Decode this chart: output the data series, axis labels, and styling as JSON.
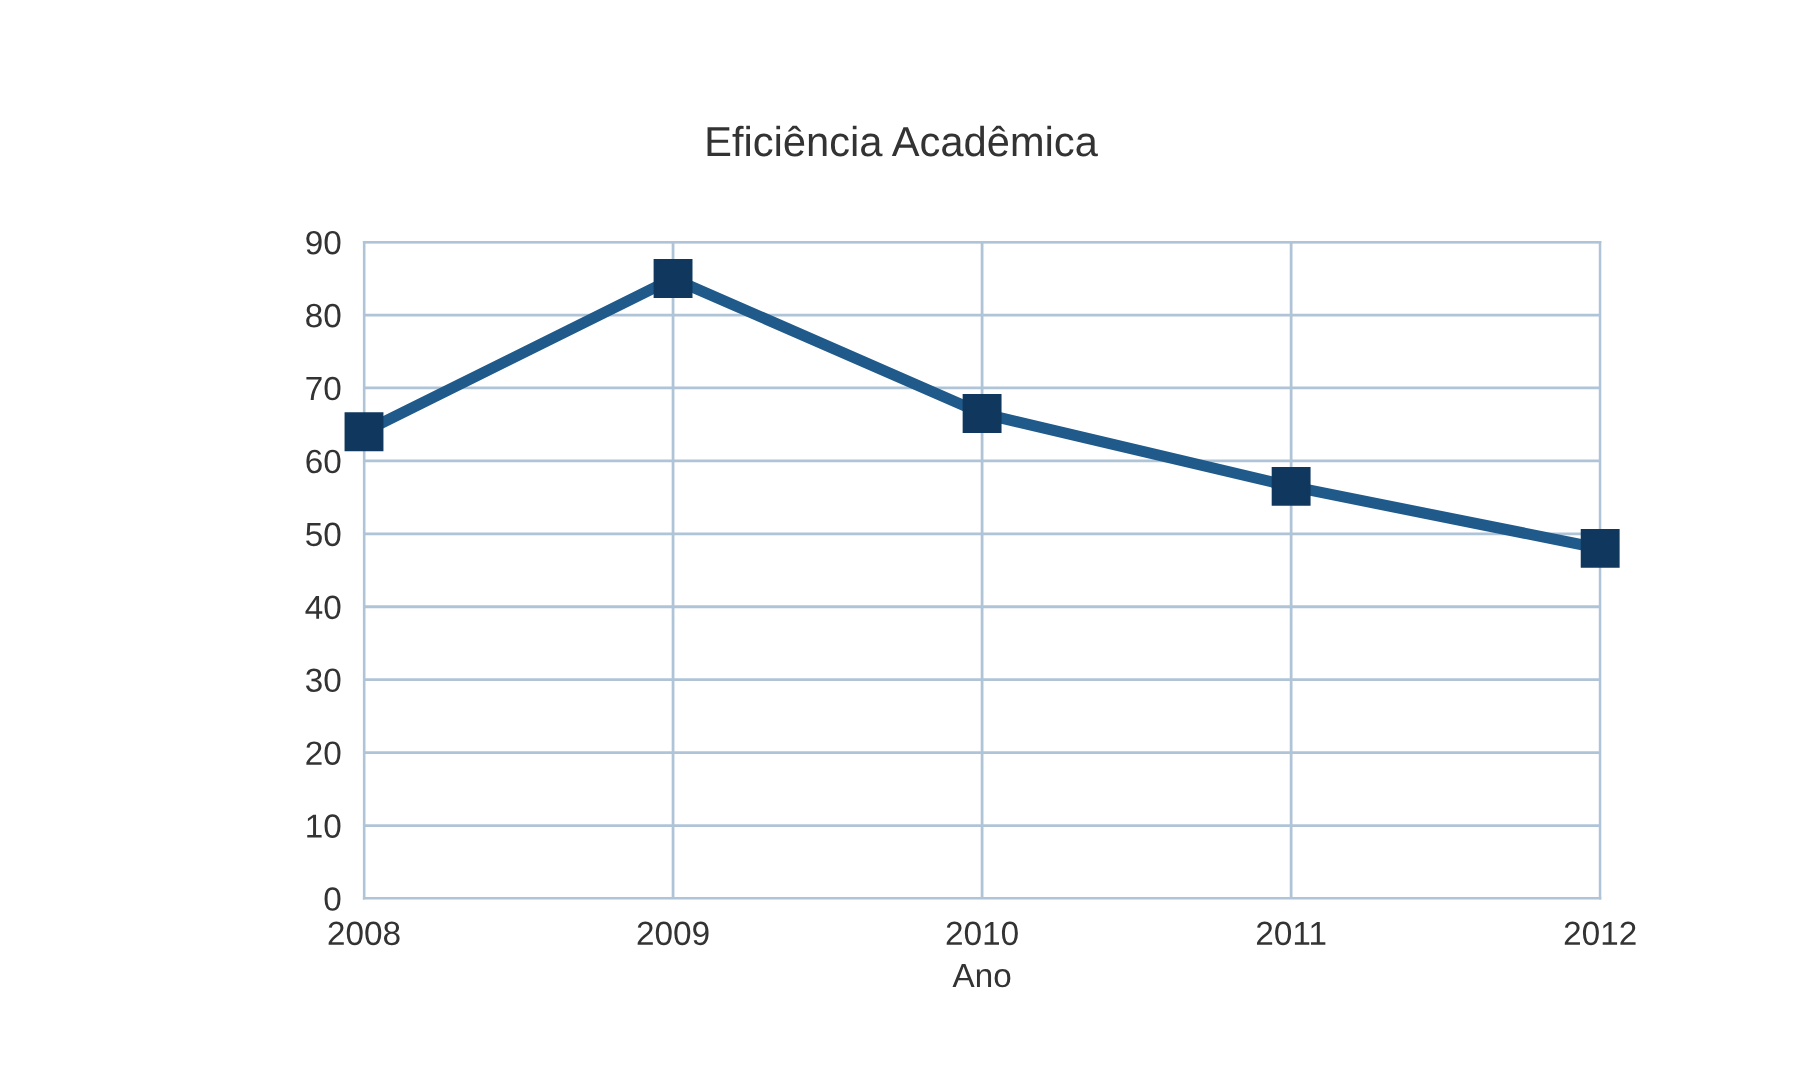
{
  "chart_data": {
    "type": "line",
    "title": "Eficiência Acadêmica",
    "xlabel": "Ano",
    "categories": [
      "2008",
      "2009",
      "2010",
      "2011",
      "2012"
    ],
    "series": [
      {
        "color": "#1f5a8a",
        "values": [
          64,
          85,
          66.5,
          56.5,
          48
        ]
      }
    ],
    "ylim": [
      0,
      90
    ],
    "yticks": [
      0,
      10,
      20,
      30,
      40,
      50,
      60,
      70,
      80,
      90
    ],
    "grid": true,
    "marker": "square",
    "line_style": "solid",
    "legend": false
  }
}
